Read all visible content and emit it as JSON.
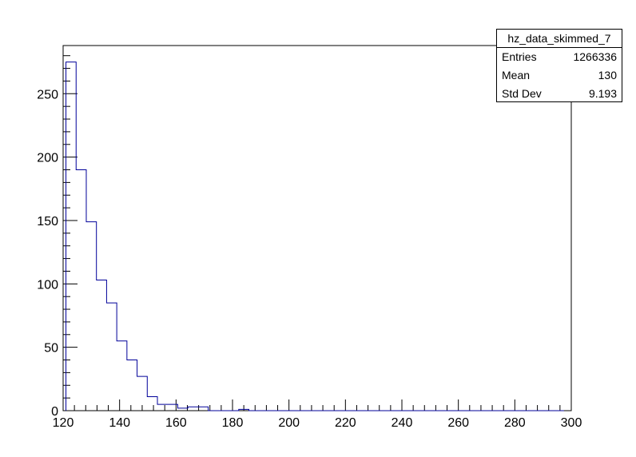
{
  "chart_data": {
    "type": "histogram",
    "title": "",
    "xlabel": "",
    "ylabel": "",
    "xlim": [
      120,
      300
    ],
    "ylim": [
      0,
      288
    ],
    "x_ticks": [
      120,
      140,
      160,
      180,
      200,
      220,
      240,
      260,
      280,
      300
    ],
    "y_ticks": [
      0,
      50,
      100,
      150,
      200,
      250
    ],
    "bin_width": 3.6,
    "bin_start": 121,
    "values": [
      275,
      190,
      149,
      103,
      85,
      55,
      40,
      27,
      11,
      5,
      5,
      2,
      3,
      3,
      0,
      0,
      0,
      1,
      0,
      0,
      0,
      0,
      0,
      0,
      0,
      0,
      0,
      0,
      0,
      0,
      0,
      0,
      0,
      0,
      0,
      0,
      0,
      0,
      0,
      0,
      0,
      0,
      0,
      0,
      0,
      0,
      0,
      0,
      0
    ],
    "line_color": "#000099",
    "grid": false
  },
  "stats_box": {
    "title": "hz_data_skimmed_7",
    "entries_label": "Entries",
    "entries_value": "1266336",
    "mean_label": "Mean",
    "mean_value": "130",
    "stddev_label": "Std Dev",
    "stddev_value": "9.193"
  }
}
